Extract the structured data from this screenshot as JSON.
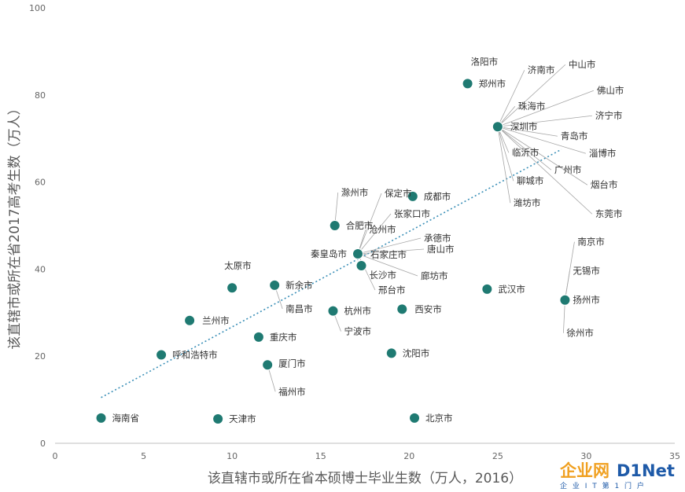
{
  "chart_data": {
    "type": "scatter",
    "xlabel": "该直辖市或所在省本硕博士毕业生数（万人，2016）",
    "ylabel": "该直辖市或所在省2017高考生数（万人）",
    "xlim": [
      0,
      35
    ],
    "ylim": [
      0,
      100
    ],
    "xticks": [
      "0",
      "5",
      "10",
      "15",
      "20",
      "25",
      "30",
      "35"
    ],
    "yticks": [
      "0",
      "20",
      "40",
      "60",
      "80",
      "100"
    ],
    "grid": false,
    "trendline": {
      "type": "linear",
      "from": [
        2.6,
        10.5
      ],
      "to": [
        28.6,
        67.5
      ]
    },
    "colors": {
      "point": "#1f7a72",
      "trend": "#3a8fb7"
    },
    "points": [
      {
        "name": "海南省",
        "x": 2.6,
        "y": 5.8
      },
      {
        "name": "天津市",
        "x": 9.2,
        "y": 5.6
      },
      {
        "name": "北京市",
        "x": 20.3,
        "y": 5.8
      },
      {
        "name": "呼和浩特市",
        "x": 6.0,
        "y": 20.3
      },
      {
        "name": "兰州市",
        "x": 7.6,
        "y": 28.2
      },
      {
        "name": "太原市",
        "x": 10.0,
        "y": 35.7
      },
      {
        "name": "重庆市",
        "x": 11.5,
        "y": 24.4
      },
      {
        "name": "厦门市",
        "x": 12.0,
        "y": 18.0
      },
      {
        "name": "福州市",
        "x": 12.0,
        "y": 18.0
      },
      {
        "name": "新余市",
        "x": 12.4,
        "y": 36.3
      },
      {
        "name": "南昌市",
        "x": 12.4,
        "y": 36.3
      },
      {
        "name": "杭州市",
        "x": 15.7,
        "y": 30.4
      },
      {
        "name": "宁波市",
        "x": 15.7,
        "y": 30.4
      },
      {
        "name": "合肥市",
        "x": 15.8,
        "y": 50.0
      },
      {
        "name": "滁州市",
        "x": 15.8,
        "y": 50.0
      },
      {
        "name": "保定市",
        "x": 17.1,
        "y": 43.5
      },
      {
        "name": "张家口市",
        "x": 17.1,
        "y": 43.5
      },
      {
        "name": "沧州市",
        "x": 17.1,
        "y": 43.5
      },
      {
        "name": "承德市",
        "x": 17.1,
        "y": 43.5
      },
      {
        "name": "秦皇岛市",
        "x": 17.1,
        "y": 43.5
      },
      {
        "name": "石家庄市",
        "x": 17.1,
        "y": 43.5
      },
      {
        "name": "唐山市",
        "x": 17.1,
        "y": 43.5
      },
      {
        "name": "廊坊市",
        "x": 17.1,
        "y": 43.5
      },
      {
        "name": "长沙市",
        "x": 17.3,
        "y": 40.8
      },
      {
        "name": "邢台市",
        "x": 17.1,
        "y": 43.5
      },
      {
        "name": "沈阳市",
        "x": 19.0,
        "y": 20.7
      },
      {
        "name": "西安市",
        "x": 19.6,
        "y": 30.8
      },
      {
        "name": "成都市",
        "x": 20.2,
        "y": 56.7
      },
      {
        "name": "武汉市",
        "x": 24.4,
        "y": 35.4
      },
      {
        "name": "洛阳市",
        "x": 23.3,
        "y": 82.6
      },
      {
        "name": "郑州市",
        "x": 23.3,
        "y": 82.6
      },
      {
        "name": "济南市",
        "x": 25.0,
        "y": 72.7
      },
      {
        "name": "中山市",
        "x": 25.0,
        "y": 72.7
      },
      {
        "name": "佛山市",
        "x": 25.0,
        "y": 72.7
      },
      {
        "name": "珠海市",
        "x": 25.0,
        "y": 72.7
      },
      {
        "name": "济宁市",
        "x": 25.0,
        "y": 72.7
      },
      {
        "name": "深圳市",
        "x": 25.0,
        "y": 72.7
      },
      {
        "name": "青岛市",
        "x": 25.0,
        "y": 72.7
      },
      {
        "name": "淄博市",
        "x": 25.0,
        "y": 72.7
      },
      {
        "name": "临沂市",
        "x": 25.0,
        "y": 72.7
      },
      {
        "name": "广州市",
        "x": 25.0,
        "y": 72.7
      },
      {
        "name": "烟台市",
        "x": 25.0,
        "y": 72.7
      },
      {
        "name": "聊城市",
        "x": 25.0,
        "y": 72.7
      },
      {
        "name": "潍坊市",
        "x": 25.0,
        "y": 72.7
      },
      {
        "name": "东莞市",
        "x": 25.0,
        "y": 72.7
      },
      {
        "name": "南京市",
        "x": 28.8,
        "y": 32.9
      },
      {
        "name": "无锡市",
        "x": 28.8,
        "y": 32.9
      },
      {
        "name": "扬州市",
        "x": 28.8,
        "y": 32.9
      },
      {
        "name": "徐州市",
        "x": 28.8,
        "y": 32.9
      }
    ]
  },
  "watermark": {
    "brand_a": "企业网",
    "brand_b": "D1Net",
    "sub": "企 业 I T 第 1 门 户"
  }
}
